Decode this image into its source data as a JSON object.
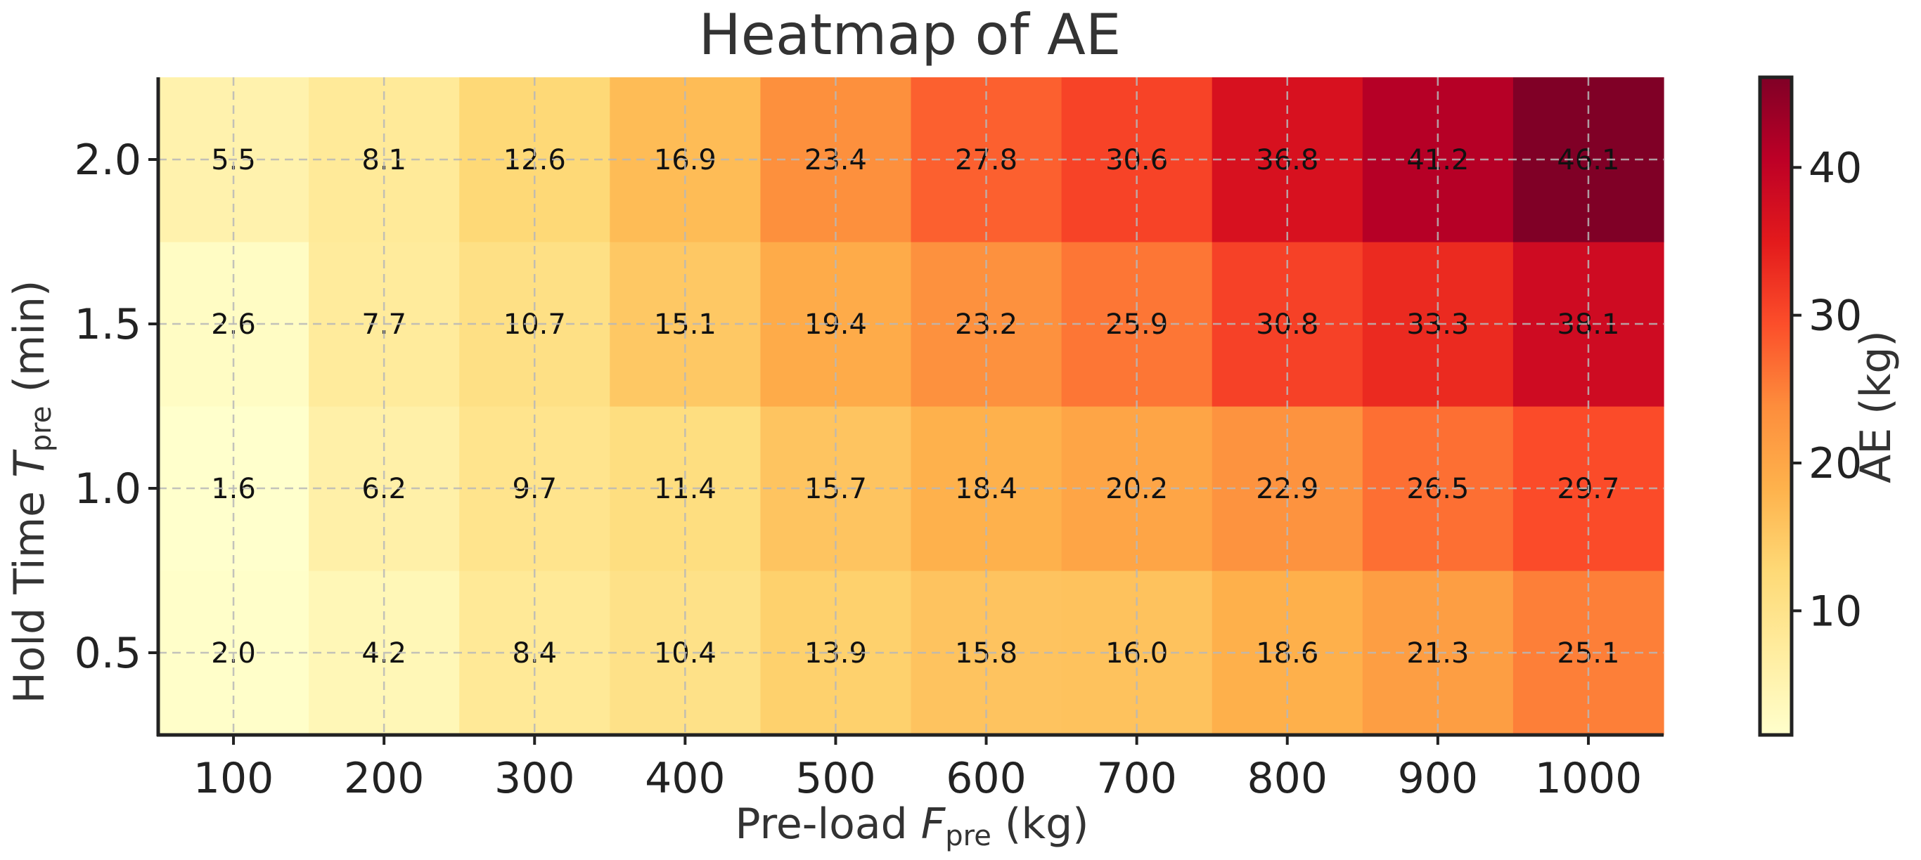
{
  "chart_data": {
    "type": "heatmap",
    "title": "Heatmap of AE",
    "xlabel": {
      "main": "Pre-load ",
      "symbol": "F",
      "sub": "pre",
      "unit": " (kg)"
    },
    "ylabel": {
      "main": "Hold Time ",
      "symbol": "T",
      "sub": "pre",
      "unit": " (min)"
    },
    "x": [
      100,
      200,
      300,
      400,
      500,
      600,
      700,
      800,
      900,
      1000
    ],
    "x_tick_labels": [
      "100",
      "200",
      "300",
      "400",
      "500",
      "600",
      "700",
      "800",
      "900",
      "1000"
    ],
    "y": [
      0.5,
      1.0,
      1.5,
      2.0
    ],
    "y_tick_labels": [
      "0.5",
      "1.0",
      "1.5",
      "2.0"
    ],
    "values": [
      [
        2.0,
        4.2,
        8.4,
        10.4,
        13.9,
        15.8,
        16.0,
        18.6,
        21.3,
        25.1
      ],
      [
        1.6,
        6.2,
        9.7,
        11.4,
        15.7,
        18.4,
        20.2,
        22.9,
        26.5,
        29.7
      ],
      [
        2.6,
        7.7,
        10.7,
        15.1,
        19.4,
        23.2,
        25.9,
        30.8,
        33.3,
        38.1
      ],
      [
        5.5,
        8.1,
        12.6,
        16.9,
        23.4,
        27.8,
        30.6,
        36.8,
        41.2,
        46.1
      ]
    ],
    "cell_labels": [
      [
        "2.0",
        "4.2",
        "8.4",
        "10.4",
        "13.9",
        "15.8",
        "16.0",
        "18.6",
        "21.3",
        "25.1"
      ],
      [
        "1.6",
        "6.2",
        "9.7",
        "11.4",
        "15.7",
        "18.4",
        "20.2",
        "22.9",
        "26.5",
        "29.7"
      ],
      [
        "2.6",
        "7.7",
        "10.7",
        "15.1",
        "19.4",
        "23.2",
        "25.9",
        "30.8",
        "33.3",
        "38.1"
      ],
      [
        "5.5",
        "8.1",
        "12.6",
        "16.9",
        "23.4",
        "27.8",
        "30.6",
        "36.8",
        "41.2",
        "46.1"
      ]
    ],
    "colorbar": {
      "label": "AE (kg)",
      "range": [
        1.6,
        46.1
      ],
      "ticks": [
        10,
        20,
        30,
        40
      ],
      "tick_labels": [
        "10",
        "20",
        "30",
        "40"
      ],
      "colormap": "YlOrRd",
      "stops": [
        "#ffffcc",
        "#ffeda0",
        "#fed976",
        "#feb24c",
        "#fd8d3c",
        "#fc4e2a",
        "#e31a1c",
        "#bd0026",
        "#800026"
      ]
    },
    "grid": true,
    "grid_style": "dashed"
  }
}
